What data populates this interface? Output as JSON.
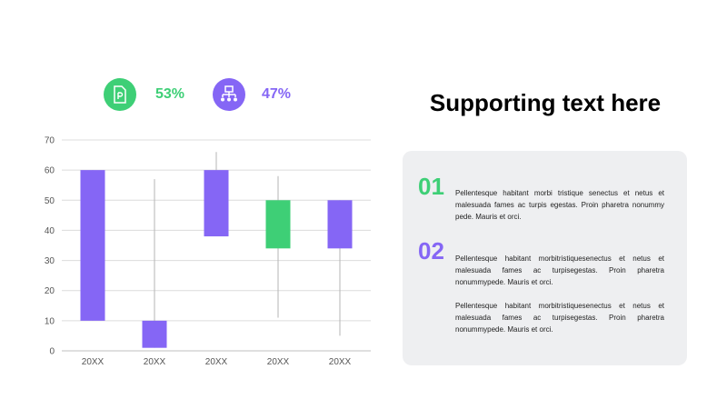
{
  "stats": [
    {
      "value": "53%",
      "icon": "document-icon",
      "color": "#3ecf76"
    },
    {
      "value": "47%",
      "icon": "hierarchy-icon",
      "color": "#8566f5"
    }
  ],
  "heading": "Supporting text here",
  "points": [
    {
      "number": "01",
      "color": "#3ecf76",
      "text": "Pellentesque habitant morbi tristique senectus et netus et malesuada fames ac turpis egestas. Proin pharetra nonummy pede. Mauris et orci."
    },
    {
      "number": "02",
      "color": "#8566f5",
      "text": "Pellentesque habitant morbitristiquesenectus et netus et malesuada fames ac turpisegestas. Proin pharetra nonummypede.  Mauris et orci."
    }
  ],
  "extra_text": "Pellentesque habitant morbitristiquesenectus et netus et malesuada fames ac turpisegestas. Proin pharetra nonummypede.  Mauris et orci.",
  "chart_data": {
    "type": "candlestick",
    "categories": [
      "20XX",
      "20XX",
      "20XX",
      "20XX",
      "20XX"
    ],
    "ylim": [
      0,
      70
    ],
    "yticks": [
      0,
      10,
      20,
      30,
      40,
      50,
      60,
      70
    ],
    "grid": true,
    "candles": [
      {
        "open": 60,
        "close": 10,
        "high": 60,
        "low": 10,
        "color": "#8566f5"
      },
      {
        "open": 10,
        "close": 1,
        "high": 57,
        "low": 1,
        "color": "#8566f5"
      },
      {
        "open": 38,
        "close": 60,
        "high": 66,
        "low": 38,
        "color": "#8566f5"
      },
      {
        "open": 34,
        "close": 50,
        "high": 58,
        "low": 11,
        "color": "#3ecf76"
      },
      {
        "open": 50,
        "close": 34,
        "high": 50,
        "low": 5,
        "color": "#8566f5"
      }
    ]
  }
}
